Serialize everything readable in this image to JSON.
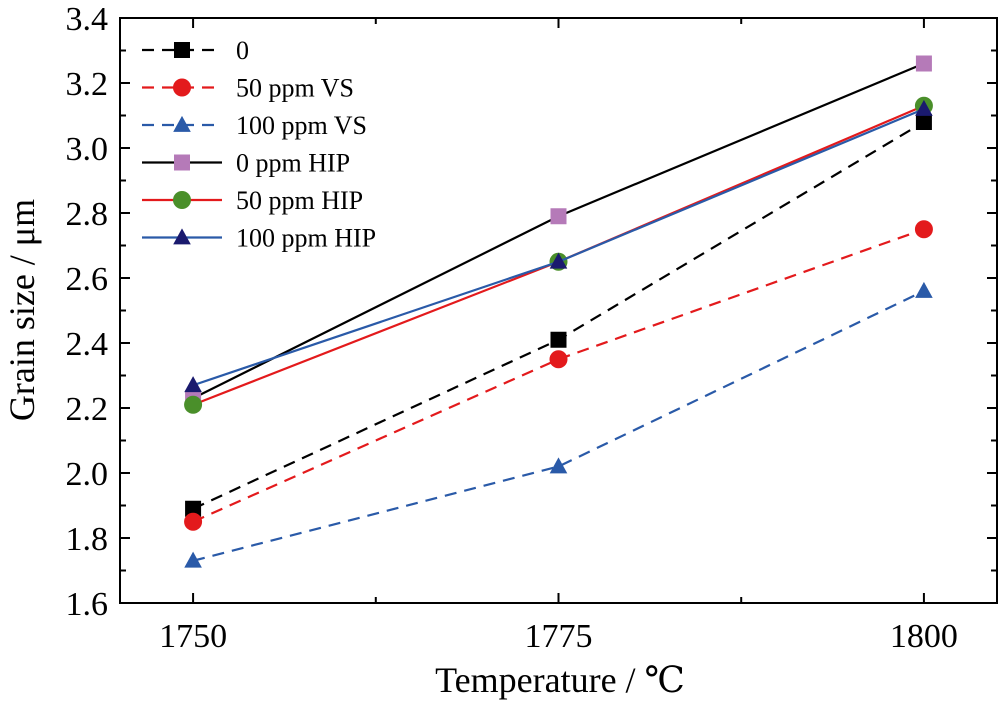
{
  "chart_data": {
    "type": "line",
    "xlabel": "Temperature / ℃",
    "ylabel": "Grain size / μm",
    "x": [
      1750,
      1775,
      1800
    ],
    "xlim": [
      1745,
      1805
    ],
    "ylim": [
      1.6,
      3.4
    ],
    "xticks": [
      "1750",
      "1775",
      "1800"
    ],
    "yticks": [
      "1.6",
      "1.8",
      "2.0",
      "2.2",
      "2.4",
      "2.6",
      "2.8",
      "3.0",
      "3.2",
      "3.4"
    ],
    "grid": false,
    "legend_position": "top-left",
    "series": [
      {
        "name": "0",
        "values": [
          1.89,
          2.41,
          3.08
        ],
        "color": "#000000",
        "marker": "square",
        "dash": true
      },
      {
        "name": "50 ppm VS",
        "values": [
          1.85,
          2.35,
          2.75
        ],
        "color": "#e31a1c",
        "marker": "circle",
        "dash": true
      },
      {
        "name": "100 ppm VS",
        "values": [
          1.73,
          2.02,
          2.56
        ],
        "color": "#2a5aa8",
        "marker": "triangle",
        "dash": true
      },
      {
        "name": "0 ppm HIP",
        "values": [
          2.23,
          2.79,
          3.26
        ],
        "color": "#000000",
        "marker": "square",
        "marker_color": "#b57ab8",
        "dash": false
      },
      {
        "name": "50 ppm HIP",
        "values": [
          2.21,
          2.65,
          3.13
        ],
        "color": "#e31a1c",
        "marker": "circle",
        "marker_color": "#4a8f2a",
        "dash": false
      },
      {
        "name": "100 ppm HIP",
        "values": [
          2.27,
          2.65,
          3.12
        ],
        "color": "#2a5aa8",
        "marker": "triangle",
        "marker_color": "#1a1a6e",
        "dash": false
      }
    ]
  }
}
